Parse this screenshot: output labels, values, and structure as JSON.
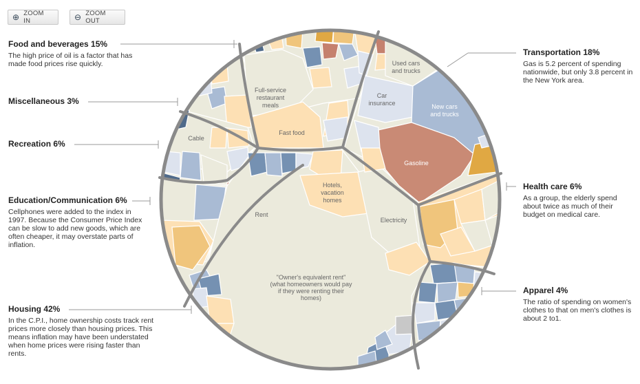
{
  "toolbar": {
    "zoom_in_label": "ZOOM IN",
    "zoom_out_label": "ZOOM OUT"
  },
  "categories": {
    "food": {
      "heading": "Food and beverages 15%",
      "description": "The high price of oil is a factor that has made food prices rise quickly."
    },
    "misc": {
      "heading": "Miscellaneous 3%"
    },
    "recreation": {
      "heading": "Recreation 6%"
    },
    "education": {
      "heading": "Education/Communication 6%",
      "description": "Cellphones were added to the index in 1997. Because the Consumer Price Index can be slow to add new goods, which are often cheaper,  it may overstate parts of inflation."
    },
    "housing": {
      "heading": "Housing 42%",
      "description": "In the C.P.I., home ownership costs track rent prices more closely than housing prices. This means inflation may have been understated when home prices were rising faster than rents."
    },
    "transportation": {
      "heading": "Transportation 18%",
      "description": "Gas is 5.2 percent of spending nationwide, but only 3.8 percent in the New York area."
    },
    "health": {
      "heading": "Health care 6%",
      "description": "As a group, the elderly spend about twice as much of their budget on medical care."
    },
    "apparel": {
      "heading": "Apparel 4%",
      "description": "The ratio of spending on women's clothes to that on men's clothes is about 2 to1."
    }
  },
  "cells": {
    "full_service": [
      "Full-service",
      "restaurant",
      "meals"
    ],
    "fast_food": [
      "Fast food"
    ],
    "cable": [
      "Cable"
    ],
    "rent": [
      "Rent"
    ],
    "hotels": [
      "Hotels,",
      "vacation",
      "homes"
    ],
    "electricity": [
      "Electricity"
    ],
    "oer": [
      "\"Owner's equivalent rent\"",
      "(what homeowners would pay",
      "if they were renting their",
      "homes)"
    ],
    "used_cars": [
      "Used cars",
      "and trucks"
    ],
    "car_insurance": [
      "Car",
      "insurance"
    ],
    "new_cars": [
      "New cars",
      "and trucks"
    ],
    "gasoline": [
      "Gasoline"
    ]
  },
  "colors": {
    "neutral": "#ebeadc",
    "light_orange": "#fde0b4",
    "orange": "#f0c57c",
    "dark_orange": "#e0a843",
    "light_blue": "#dde3ee",
    "blue": "#a9bbd4",
    "dark_blue": "#7591b2",
    "navy": "#4f6a8a",
    "rust": "#c5816e",
    "gasoline": "#c98a75",
    "boundary": "#8a8a8a",
    "leader": "#999999"
  }
}
